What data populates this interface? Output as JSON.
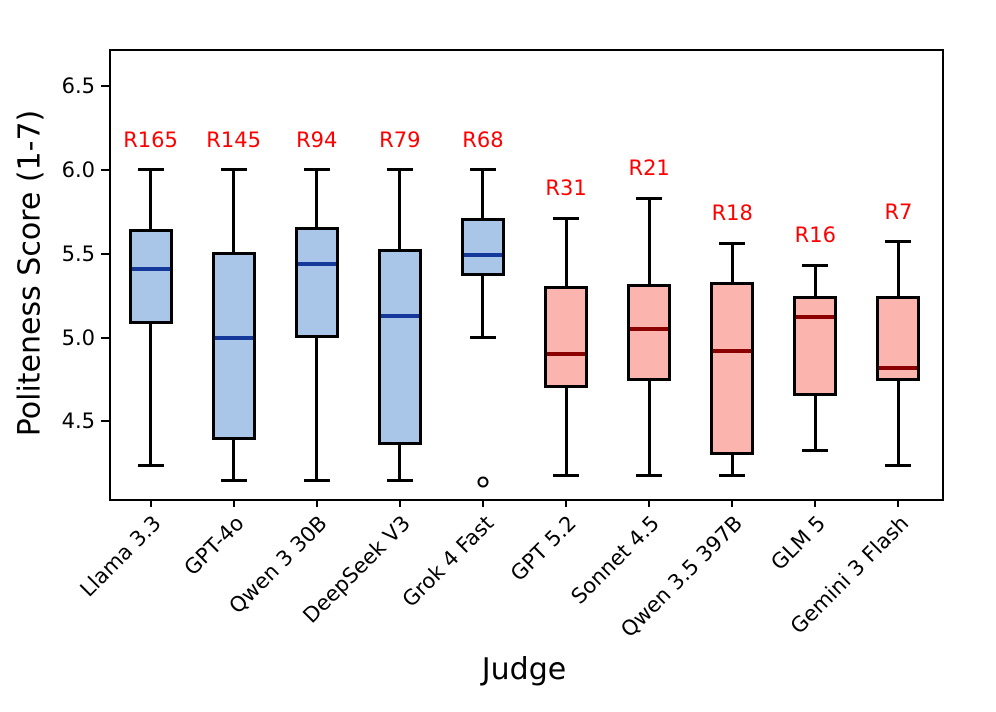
{
  "figure": {
    "xlabel": "Judge",
    "ylabel": "Politeness Score (1-7)"
  },
  "chart_data": {
    "type": "boxplot",
    "title": "",
    "xlabel": "Judge",
    "ylabel": "Politeness Score (1-7)",
    "ylim": [
      4.05,
      6.72
    ],
    "grid": false,
    "legend": false,
    "yticks": [
      {
        "label": "6.5",
        "value": 6.5
      },
      {
        "label": "6.0",
        "value": 6.0
      },
      {
        "label": "5.5",
        "value": 5.5
      },
      {
        "label": "5.0",
        "value": 5.0
      },
      {
        "label": "4.5",
        "value": 4.5
      }
    ],
    "categories": [
      "Llama 3.3",
      "GPT-4o",
      "Qwen 3 30B",
      "DeepSeek V3",
      "Grok 4 Fast",
      "GPT 5.2",
      "Sonnet 4.5",
      "Qwen 3.5 397B",
      "GLM 5",
      "Gemini 3 Flash"
    ],
    "series": [
      {
        "name": "Llama 3.3",
        "annotation": "R165",
        "group": "blue",
        "whisker_low": 4.24,
        "q1": 5.08,
        "median": 5.41,
        "q3": 5.65,
        "whisker_high": 6.0,
        "outliers": []
      },
      {
        "name": "GPT-4o",
        "annotation": "R145",
        "group": "blue",
        "whisker_low": 4.15,
        "q1": 4.39,
        "median": 5.0,
        "q3": 5.51,
        "whisker_high": 6.0,
        "outliers": []
      },
      {
        "name": "Qwen 3 30B",
        "annotation": "R94",
        "group": "blue",
        "whisker_low": 4.15,
        "q1": 5.0,
        "median": 5.44,
        "q3": 5.66,
        "whisker_high": 6.0,
        "outliers": []
      },
      {
        "name": "DeepSeek V3",
        "annotation": "R79",
        "group": "blue",
        "whisker_low": 4.15,
        "q1": 4.36,
        "median": 5.13,
        "q3": 5.53,
        "whisker_high": 6.0,
        "outliers": []
      },
      {
        "name": "Grok 4 Fast",
        "annotation": "R68",
        "group": "blue",
        "whisker_low": 5.0,
        "q1": 5.37,
        "median": 5.49,
        "q3": 5.71,
        "whisker_high": 6.0,
        "outliers": [
          4.14
        ]
      },
      {
        "name": "GPT 5.2",
        "annotation": "R31",
        "group": "pink",
        "whisker_low": 4.18,
        "q1": 4.7,
        "median": 4.9,
        "q3": 5.31,
        "whisker_high": 5.71,
        "outliers": []
      },
      {
        "name": "Sonnet 4.5",
        "annotation": "R21",
        "group": "pink",
        "whisker_low": 4.18,
        "q1": 4.74,
        "median": 5.05,
        "q3": 5.32,
        "whisker_high": 5.83,
        "outliers": []
      },
      {
        "name": "Qwen 3.5 397B",
        "annotation": "R18",
        "group": "pink",
        "whisker_low": 4.18,
        "q1": 4.3,
        "median": 4.92,
        "q3": 5.33,
        "whisker_high": 5.56,
        "outliers": []
      },
      {
        "name": "GLM 5",
        "annotation": "R16",
        "group": "pink",
        "whisker_low": 4.33,
        "q1": 4.65,
        "median": 5.12,
        "q3": 5.25,
        "whisker_high": 5.43,
        "outliers": []
      },
      {
        "name": "Gemini 3 Flash",
        "annotation": "R7",
        "group": "pink",
        "whisker_low": 4.24,
        "q1": 4.74,
        "median": 4.82,
        "q3": 5.25,
        "whisker_high": 5.57,
        "outliers": []
      }
    ],
    "annotation_offset": 0.18,
    "colors": {
      "blue_fill": "#A9C6E8",
      "blue_median": "#15399B",
      "pink_fill": "#FBB4AE",
      "pink_median": "#8B0000",
      "edge": "#000000",
      "annotation": "#FF0000"
    }
  }
}
